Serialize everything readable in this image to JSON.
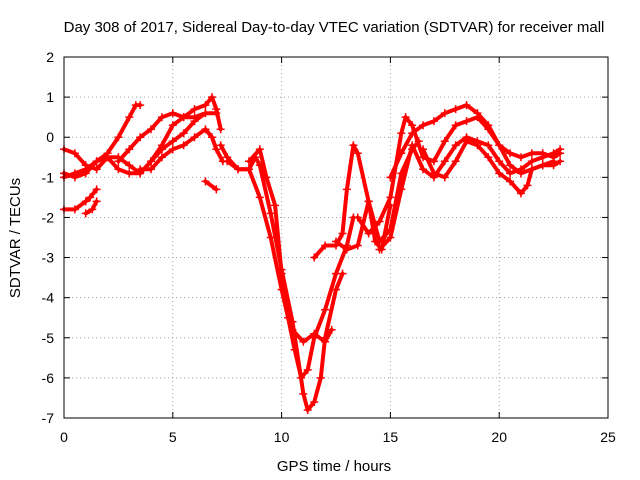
{
  "chart_data": {
    "type": "scatter",
    "title": "Day 308 of 2017, Sidereal Day-to-day VTEC variation (SDTVAR) for receiver mall",
    "xlabel": "GPS time / hours",
    "ylabel": "SDTVAR / TECUs",
    "xlim": [
      0,
      25
    ],
    "ylim": [
      -7,
      2
    ],
    "xticks": [
      "0",
      "5",
      "10",
      "15",
      "20",
      "25"
    ],
    "yticks": [
      "-7",
      "-6",
      "-5",
      "-4",
      "-3",
      "-2",
      "-1",
      "0",
      "1",
      "2"
    ],
    "grid": true,
    "marker": "plus",
    "color": "#ff0000",
    "series": [
      {
        "x": [
          0.0,
          0.5,
          1.0,
          1.5,
          2.0,
          2.5,
          3.0,
          3.3,
          3.5
        ],
        "y": [
          -0.9,
          -1.0,
          -0.9,
          -0.6,
          -0.4,
          0.0,
          0.5,
          0.8,
          0.8
        ]
      },
      {
        "x": [
          0.0,
          0.5,
          1.0,
          1.5,
          2.0,
          2.5,
          3.0,
          3.5,
          4.0,
          4.5,
          5.0,
          5.5,
          6.0,
          6.5,
          6.8,
          7.0,
          7.2
        ],
        "y": [
          -1.0,
          -0.9,
          -0.8,
          -0.6,
          -0.5,
          -0.8,
          -0.9,
          -0.9,
          -0.6,
          -0.2,
          0.3,
          0.5,
          0.7,
          0.8,
          1.0,
          0.7,
          0.2
        ]
      },
      {
        "x": [
          0.0,
          0.5,
          1.0,
          1.5,
          2.0,
          2.5,
          3.0,
          3.5,
          4.0,
          4.5,
          5.0,
          5.5,
          6.0,
          6.5
        ],
        "y": [
          -0.3,
          -0.4,
          -0.7,
          -0.8,
          -0.5,
          -0.5,
          -0.7,
          -0.9,
          -0.6,
          -0.3,
          -0.1,
          0.1,
          0.4,
          0.6
        ]
      },
      {
        "x": [
          2.5,
          3.0,
          3.5,
          4.0,
          4.5,
          5.0,
          5.5,
          6.0,
          6.5,
          7.0
        ],
        "y": [
          -0.6,
          -0.3,
          0.0,
          0.2,
          0.5,
          0.6,
          0.5,
          0.5,
          0.6,
          0.6
        ]
      },
      {
        "x": [
          3.5,
          4.0,
          4.5,
          5.0,
          5.5,
          6.0,
          6.5,
          6.8,
          7.0,
          7.3
        ],
        "y": [
          -0.8,
          -0.8,
          -0.5,
          -0.3,
          -0.2,
          0.0,
          0.2,
          0.0,
          -0.3,
          -0.6
        ]
      },
      {
        "x": [
          0.0,
          0.5,
          1.0,
          1.2,
          1.5
        ],
        "y": [
          -1.8,
          -1.8,
          -1.6,
          -1.5,
          -1.3
        ]
      },
      {
        "x": [
          1.0,
          1.3,
          1.5
        ],
        "y": [
          -1.9,
          -1.8,
          -1.6
        ]
      },
      {
        "x": [
          6.5,
          7.0
        ],
        "y": [
          -1.1,
          -1.3
        ]
      },
      {
        "x": [
          7.2,
          7.5,
          8.0,
          8.5,
          9.0,
          9.5,
          10.0,
          10.3,
          10.6,
          10.9,
          11.2,
          11.5,
          12.0,
          12.5,
          13.0,
          13.3
        ],
        "y": [
          -0.2,
          -0.5,
          -0.8,
          -0.8,
          -1.5,
          -2.5,
          -3.8,
          -4.5,
          -5.3,
          -6.0,
          -5.8,
          -5.0,
          -4.3,
          -3.4,
          -2.7,
          -2.0
        ]
      },
      {
        "x": [
          7.5,
          8.0,
          8.5,
          8.8,
          9.0,
          9.5,
          10.0,
          10.5,
          11.0,
          11.2,
          11.5,
          11.8,
          12.0,
          12.5,
          12.8
        ],
        "y": [
          -0.6,
          -0.8,
          -0.8,
          -0.5,
          -0.7,
          -1.9,
          -3.3,
          -4.6,
          -6.4,
          -6.8,
          -6.6,
          -6.0,
          -5.0,
          -3.8,
          -3.4
        ]
      },
      {
        "x": [
          8.5,
          9.0,
          9.3,
          9.7,
          10.0,
          10.5,
          11.0,
          11.5,
          12.0,
          12.3
        ],
        "y": [
          -0.6,
          -0.3,
          -1.0,
          -1.7,
          -3.4,
          -4.8,
          -5.1,
          -4.9,
          -5.1,
          -4.8
        ]
      },
      {
        "x": [
          11.5,
          12.0,
          12.5,
          12.8,
          13.0,
          13.3,
          13.5,
          14.0,
          14.5,
          15.0,
          15.5,
          16.0,
          16.3
        ],
        "y": [
          -3.0,
          -2.7,
          -2.7,
          -2.4,
          -1.3,
          -0.2,
          -0.4,
          -1.6,
          -2.6,
          -2.3,
          -0.9,
          -0.3,
          -0.1
        ]
      },
      {
        "x": [
          12.5,
          13.0,
          13.5,
          14.0,
          14.3,
          14.6,
          15.0
        ],
        "y": [
          -2.6,
          -2.8,
          -2.7,
          -1.6,
          -2.6,
          -2.8,
          -1.7
        ]
      },
      {
        "x": [
          13.5,
          14.0,
          14.5,
          15.0,
          15.5,
          15.7,
          16.0,
          16.5,
          17.0,
          17.5,
          18.0,
          18.5,
          19.0,
          19.5,
          20.0,
          20.5,
          21.0,
          21.5,
          22.0,
          22.5,
          22.8
        ],
        "y": [
          -2.0,
          -2.4,
          -2.1,
          -1.5,
          0.1,
          0.5,
          0.3,
          -0.5,
          -0.6,
          -0.1,
          0.3,
          0.4,
          0.5,
          0.2,
          -0.2,
          -0.4,
          -0.5,
          -0.4,
          -0.4,
          -0.5,
          -0.4
        ]
      },
      {
        "x": [
          14.5,
          15.0,
          15.5,
          16.0,
          16.5,
          17.0,
          17.5,
          18.0,
          18.5,
          19.0,
          19.5,
          20.0,
          20.5,
          21.0,
          21.5,
          22.0,
          22.5,
          22.8
        ],
        "y": [
          -2.8,
          -2.5,
          -1.3,
          -0.2,
          -0.8,
          -1.0,
          -0.6,
          -0.2,
          0.0,
          -0.1,
          -0.2,
          -0.6,
          -0.9,
          -0.8,
          -0.6,
          -0.5,
          -0.4,
          -0.3
        ]
      },
      {
        "x": [
          15.0,
          15.5,
          16.0,
          16.5,
          17.0,
          17.5,
          18.0,
          18.5,
          19.0,
          19.5,
          20.0,
          20.5,
          21.0,
          21.5,
          22.0,
          22.5,
          22.8
        ],
        "y": [
          -1.0,
          -0.4,
          0.1,
          0.3,
          0.4,
          0.6,
          0.7,
          0.8,
          0.6,
          0.3,
          -0.2,
          -0.7,
          -0.9,
          -0.8,
          -0.7,
          -0.7,
          -0.6
        ]
      },
      {
        "x": [
          16.5,
          17.0,
          17.5,
          18.0,
          18.5,
          19.0,
          19.5,
          20.0,
          20.5,
          21.0,
          21.3,
          21.5,
          22.0,
          22.5
        ],
        "y": [
          -0.3,
          -0.9,
          -1.0,
          -0.6,
          -0.1,
          -0.2,
          -0.5,
          -0.9,
          -1.1,
          -1.4,
          -1.2,
          -0.8,
          -0.7,
          -0.6
        ]
      }
    ]
  }
}
